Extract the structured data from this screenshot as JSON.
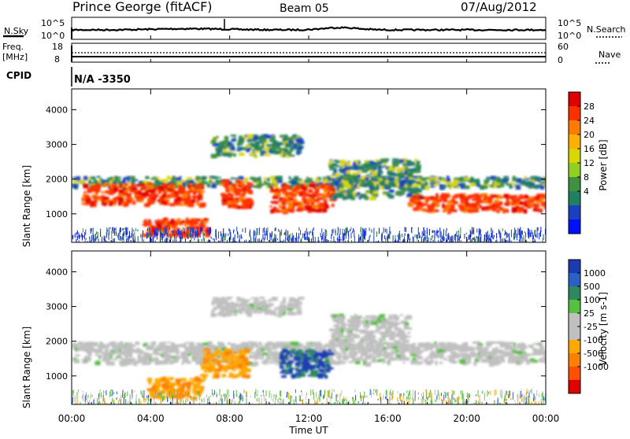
{
  "header": {
    "station": "Prince George (fitACF)",
    "beam": "Beam 05",
    "date": "07/Aug/2012"
  },
  "top_strip": {
    "left_label": "N.Sky",
    "left_ticks": [
      "10^5",
      "10^0"
    ],
    "right_ticks": [
      "10^5",
      "10^0"
    ],
    "right_label": "N.Search"
  },
  "freq_strip": {
    "left_label_1": "Freq.",
    "left_label_2": "[MHz]",
    "left_ticks": [
      "18",
      "8"
    ],
    "right_ticks": [
      "60",
      "0"
    ],
    "right_label": "Nave"
  },
  "cpid": {
    "label": "CPID",
    "value": "N/A -3350"
  },
  "power_panel": {
    "ylabel": "Slant Range [km]",
    "colorbar_label": "Power [dB]",
    "colorbar_ticks": [
      "28",
      "24",
      "20",
      "16",
      "12",
      "8",
      "4"
    ],
    "colorbar_colors": [
      "#e00000",
      "#ff3000",
      "#ff7a00",
      "#ffb000",
      "#d8d800",
      "#8fd020",
      "#3f9040",
      "#208060",
      "#1a40c0",
      "#0010ff"
    ]
  },
  "velocity_panel": {
    "ylabel": "Slant Range [km]",
    "colorbar_label": "Velocity [m s-1]",
    "colorbar_ticks": [
      "1000",
      "500",
      "100",
      "25",
      "-25",
      "-100",
      "-500",
      "-1000"
    ],
    "colorbar_colors": [
      "#1a3cb0",
      "#2a60c8",
      "#2e8a5e",
      "#58c040",
      "#c0c0c0",
      "#c0c0c0",
      "#ffa800",
      "#ff8000",
      "#ff5000",
      "#e00000"
    ]
  },
  "x_axis": {
    "ticks": [
      "00:00",
      "04:00",
      "08:00",
      "12:00",
      "16:00",
      "20:00",
      "00:00"
    ],
    "label": "Time UT"
  },
  "y_axis_ticks": [
    "4000",
    "3000",
    "2000",
    "1000"
  ],
  "chart_data": {
    "type": "heatmap",
    "title": "Prince George (fitACF) Beam 05 07/Aug/2012",
    "xlabel": "Time UT",
    "ylabel": "Slant Range [km]",
    "x_ticks": [
      "00:00",
      "04:00",
      "08:00",
      "12:00",
      "16:00",
      "20:00",
      "00:00"
    ],
    "x_range_hours": [
      0,
      24
    ],
    "ylim": [
      180,
      4600
    ],
    "y_ticks": [
      1000,
      2000,
      3000,
      4000
    ],
    "panels": [
      {
        "name": "Power [dB]",
        "color_range": [
          0,
          30
        ],
        "colorbar_ticks": [
          4,
          8,
          12,
          16,
          20,
          24,
          28
        ],
        "regions": [
          {
            "t": [
              0.0,
              24.0
            ],
            "r": [
              1800,
              2100
            ],
            "level": "low"
          },
          {
            "t": [
              0.5,
              6.5
            ],
            "r": [
              1300,
              1900
            ],
            "level": "high"
          },
          {
            "t": [
              3.5,
              6.8
            ],
            "r": [
              400,
              900
            ],
            "level": "high"
          },
          {
            "t": [
              7.5,
              9.0
            ],
            "r": [
              1200,
              2000
            ],
            "level": "high"
          },
          {
            "t": [
              10.0,
              13.2
            ],
            "r": [
              1100,
              1900
            ],
            "level": "high"
          },
          {
            "t": [
              7.0,
              11.5
            ],
            "r": [
              2700,
              3300
            ],
            "level": "low"
          },
          {
            "t": [
              13.0,
              17.5
            ],
            "r": [
              1500,
              2600
            ],
            "level": "low"
          },
          {
            "t": [
              17.0,
              24.0
            ],
            "r": [
              1100,
              1600
            ],
            "level": "high"
          }
        ]
      },
      {
        "name": "Velocity [m s-1]",
        "color_range": [
          -1000,
          1000
        ],
        "colorbar_ticks": [
          -1000,
          -500,
          -100,
          -25,
          25,
          100,
          500,
          1000
        ],
        "regions": [
          {
            "t": [
              0.0,
              24.0
            ],
            "r": [
              1400,
              2000
            ],
            "velocity": 0
          },
          {
            "t": [
              3.8,
              6.5
            ],
            "r": [
              400,
              1000
            ],
            "velocity": -150
          },
          {
            "t": [
              6.5,
              8.8
            ],
            "r": [
              1000,
              1800
            ],
            "velocity": -150
          },
          {
            "t": [
              10.5,
              13.0
            ],
            "r": [
              1000,
              1800
            ],
            "velocity": 600
          },
          {
            "t": [
              7.0,
              11.5
            ],
            "r": [
              2800,
              3300
            ],
            "velocity": 0
          },
          {
            "t": [
              13.0,
              17.0
            ],
            "r": [
              1800,
              2800
            ],
            "velocity": 0
          }
        ]
      }
    ]
  }
}
